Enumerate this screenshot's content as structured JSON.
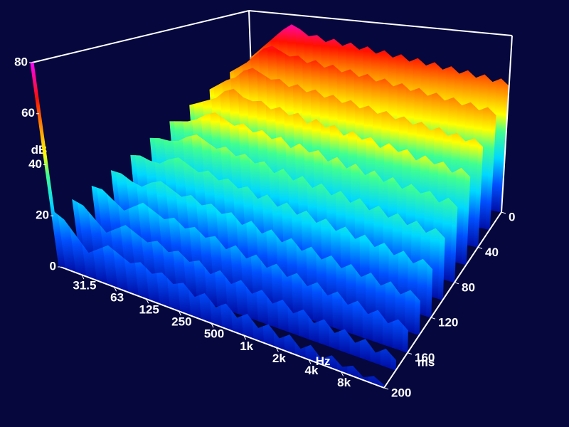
{
  "chart_data": {
    "type": "waterfall",
    "x_label": "Hz",
    "y_label": "ms",
    "z_label": "dB",
    "xscale": "log",
    "xlim": [
      20,
      20000
    ],
    "xticks": [
      31.5,
      63,
      125,
      250,
      500,
      {
        "value": 1000,
        "label": "1k"
      },
      {
        "value": 2000,
        "label": "2k"
      },
      {
        "value": 4000,
        "label": "4k"
      },
      {
        "value": 8000,
        "label": "8k"
      }
    ],
    "ylim": [
      0,
      200
    ],
    "yticks": [
      0,
      40,
      80,
      120,
      160,
      200
    ],
    "zlim": [
      0,
      80
    ],
    "zticks": [
      0,
      20,
      40,
      60,
      80
    ],
    "colorscale": [
      [
        0,
        "#0010a8"
      ],
      [
        12,
        "#0050ff"
      ],
      [
        24,
        "#00d8ff"
      ],
      [
        36,
        "#40ff90"
      ],
      [
        44,
        "#ffff00"
      ],
      [
        56,
        "#ff8000"
      ],
      [
        66,
        "#ff1000"
      ],
      [
        80,
        "#ff00ff"
      ]
    ],
    "x": [
      20,
      25,
      31.2,
      39,
      48.8,
      61,
      76.2,
      95.2,
      119,
      149,
      186,
      232,
      290,
      363,
      453,
      566,
      708,
      884,
      1105,
      1381,
      1726,
      2157,
      2696,
      3369,
      4211,
      5262,
      6576,
      8218,
      10271,
      12836,
      16041,
      20000
    ],
    "y": [
      0,
      20,
      40,
      60,
      80,
      100,
      120,
      140,
      160,
      180,
      200
    ],
    "values": [
      [
        56,
        60,
        64,
        68,
        72,
        75,
        73,
        70,
        71,
        68,
        70,
        67,
        69,
        66,
        68,
        65,
        67,
        64,
        66,
        63,
        65,
        62,
        64,
        61,
        63,
        60,
        62,
        59,
        61,
        58,
        60,
        57
      ],
      [
        52,
        55,
        58,
        62,
        66,
        68,
        66,
        64,
        65,
        62,
        64,
        61,
        63,
        60,
        62,
        59,
        61,
        58,
        60,
        57,
        59,
        56,
        58,
        55,
        57,
        54,
        56,
        53,
        55,
        52,
        54,
        51
      ],
      [
        47,
        50,
        53,
        55,
        59,
        61,
        59,
        57,
        58,
        55,
        57,
        54,
        56,
        53,
        55,
        52,
        54,
        51,
        53,
        50,
        52,
        49,
        51,
        48,
        50,
        47,
        49,
        46,
        48,
        45,
        47,
        44
      ],
      [
        43,
        45,
        47,
        49,
        53,
        55,
        52,
        51,
        52,
        49,
        51,
        48,
        50,
        46,
        49,
        46,
        48,
        44,
        47,
        44,
        46,
        42,
        45,
        42,
        44,
        40,
        43,
        40,
        42,
        38,
        41,
        38
      ],
      [
        39,
        40,
        41,
        43,
        46,
        48,
        46,
        44,
        46,
        43,
        45,
        42,
        44,
        40,
        43,
        40,
        42,
        38,
        41,
        37,
        40,
        36,
        39,
        35,
        38,
        34,
        37,
        34,
        36,
        32,
        35,
        32
      ],
      [
        35,
        36,
        36,
        37,
        40,
        42,
        40,
        38,
        40,
        37,
        39,
        36,
        38,
        34,
        37,
        33,
        36,
        32,
        35,
        31,
        34,
        30,
        33,
        29,
        32,
        28,
        31,
        27,
        30,
        26,
        29,
        26
      ],
      [
        31,
        32,
        31,
        31,
        34,
        36,
        34,
        32,
        34,
        31,
        33,
        30,
        32,
        28,
        31,
        27,
        30,
        26,
        29,
        25,
        28,
        24,
        27,
        23,
        26,
        22,
        25,
        21,
        24,
        20,
        23,
        20
      ],
      [
        28,
        28,
        26,
        25,
        28,
        30,
        28,
        26,
        28,
        25,
        27,
        24,
        26,
        22,
        25,
        21,
        24,
        20,
        23,
        19,
        22,
        18,
        21,
        17,
        20,
        16,
        19,
        15,
        18,
        14,
        17,
        14
      ],
      [
        25,
        25,
        22,
        19,
        22,
        25,
        23,
        21,
        23,
        20,
        22,
        19,
        21,
        17,
        20,
        16,
        19,
        15,
        18,
        14,
        17,
        13,
        16,
        12,
        15,
        11,
        14,
        10,
        13,
        9,
        12,
        9
      ],
      [
        23,
        22,
        18,
        14,
        17,
        20,
        18,
        16,
        18,
        15,
        17,
        14,
        16,
        12,
        15,
        11,
        14,
        10,
        13,
        9,
        12,
        8,
        11,
        7,
        10,
        6,
        9,
        5,
        8,
        4,
        7,
        4
      ],
      [
        22,
        20,
        15,
        10,
        13,
        16,
        14,
        12,
        14,
        11,
        13,
        10,
        12,
        8,
        11,
        7,
        10,
        6,
        9,
        5,
        8,
        4,
        7,
        3,
        6,
        2,
        5,
        2,
        4,
        1,
        3,
        1
      ]
    ]
  }
}
